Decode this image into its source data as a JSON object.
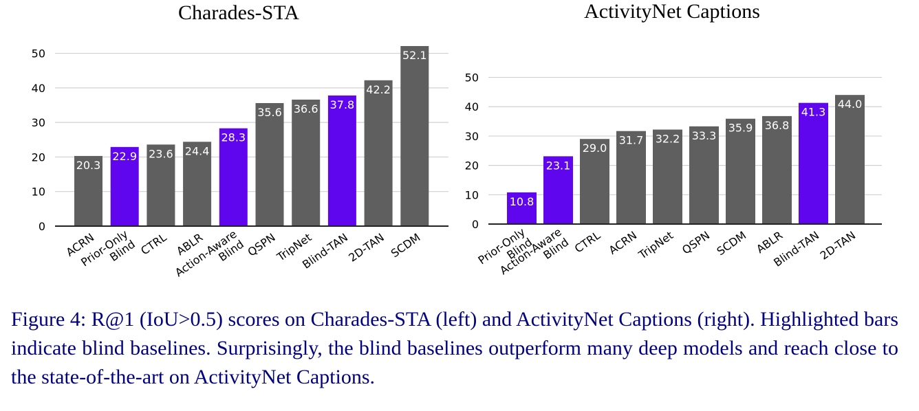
{
  "colors": {
    "regular": "#5f5f5f",
    "blind": "#5f06ee",
    "grid": "#d0d0d0",
    "axis": "#222222"
  },
  "chart_data": [
    {
      "type": "bar",
      "title": "Charades-STA",
      "xlabel": "",
      "ylabel": "",
      "ylim": [
        0,
        52.1
      ],
      "yticks": [
        0,
        10,
        20,
        30,
        40,
        50
      ],
      "grid": true,
      "categories": [
        "ACRN",
        "Prior-Only Blind",
        "CTRL",
        "ABLR",
        "Action-Aware Blind",
        "QSPN",
        "TripNet",
        "Blind-TAN",
        "2D-TAN",
        "SCDM"
      ],
      "values": [
        20.3,
        22.9,
        23.6,
        24.4,
        28.3,
        35.6,
        36.6,
        37.8,
        42.2,
        52.1
      ],
      "value_labels": [
        "20.3",
        "22.9",
        "23.6",
        "24.4",
        "28.3",
        "35.6",
        "36.6",
        "37.8",
        "42.2",
        "52.1"
      ],
      "highlighted": [
        false,
        true,
        false,
        false,
        true,
        false,
        false,
        true,
        false,
        false
      ]
    },
    {
      "type": "bar",
      "title": "ActivityNet Captions",
      "xlabel": "",
      "ylabel": "",
      "ylim": [
        0,
        52
      ],
      "yticks": [
        0,
        10,
        20,
        30,
        40,
        50
      ],
      "grid": true,
      "categories": [
        "Prior-Only Blind",
        "Action-Aware Blind",
        "CTRL",
        "ACRN",
        "TripNet",
        "QSPN",
        "SCDM",
        "ABLR",
        "Blind-TAN",
        "2D-TAN"
      ],
      "values": [
        10.8,
        23.1,
        29.0,
        31.7,
        32.2,
        33.3,
        35.9,
        36.8,
        41.3,
        44.0
      ],
      "value_labels": [
        "10.8",
        "23.1",
        "29.0",
        "31.7",
        "32.2",
        "33.3",
        "35.9",
        "36.8",
        "41.3",
        "44.0"
      ],
      "highlighted": [
        true,
        true,
        false,
        false,
        false,
        false,
        false,
        false,
        true,
        false
      ]
    }
  ],
  "caption": "Figure 4: R@1 (IoU>0.5) scores on Charades-STA (left) and ActivityNet Captions (right). Highlighted bars indicate blind baselines. Surprisingly, the blind baselines outperform many deep models and reach close to the state-of-the-art on ActivityNet Captions."
}
